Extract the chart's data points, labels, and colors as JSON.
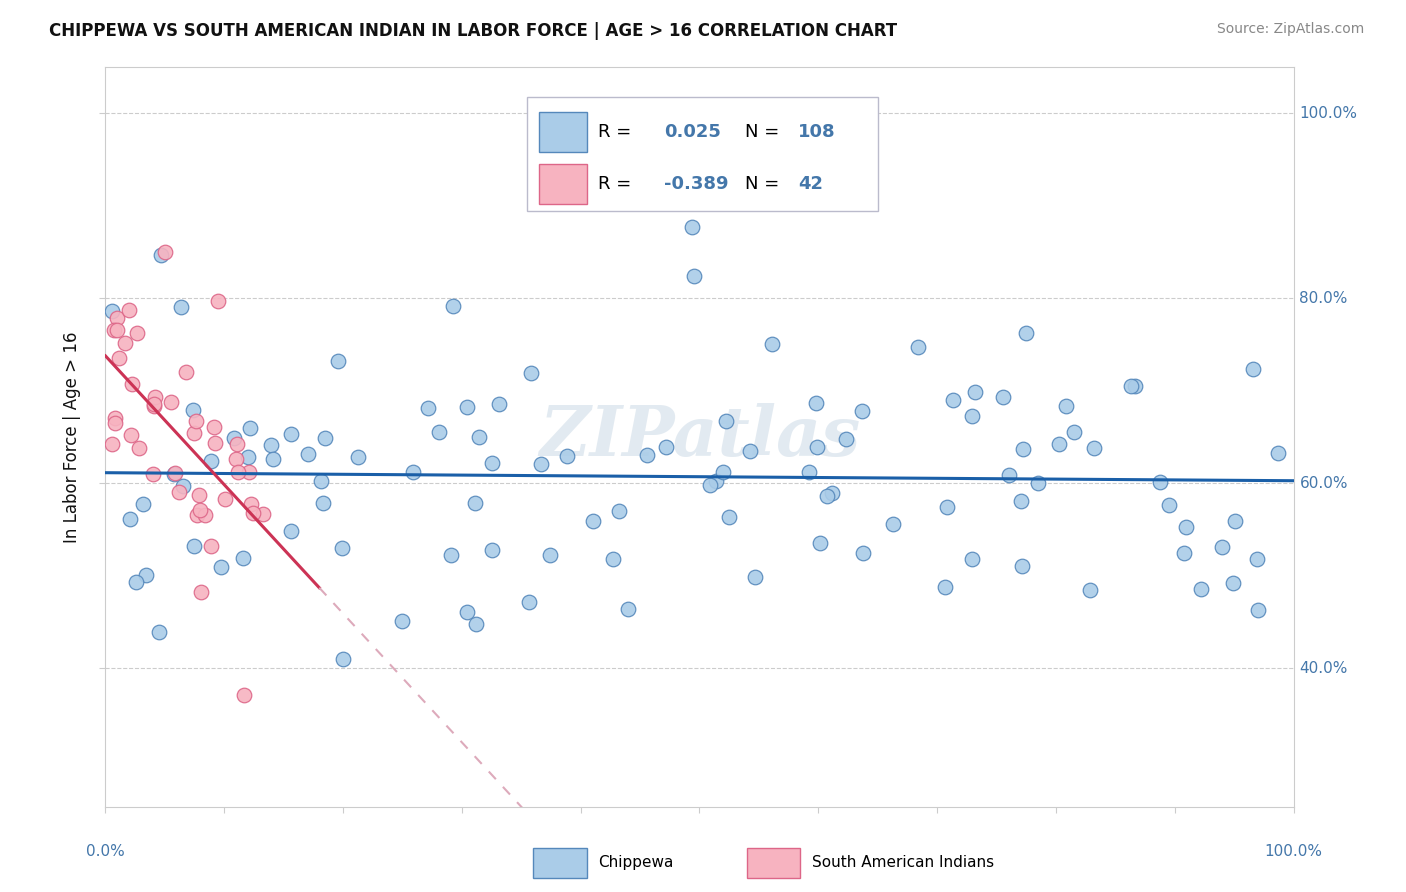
{
  "title": "CHIPPEWA VS SOUTH AMERICAN INDIAN IN LABOR FORCE | AGE > 16 CORRELATION CHART",
  "source": "Source: ZipAtlas.com",
  "ylabel": "In Labor Force | Age > 16",
  "legend_label1": "Chippewa",
  "legend_label2": "South American Indians",
  "r1": "0.025",
  "n1": "108",
  "r2": "-0.389",
  "n2": "42",
  "watermark": "ZIPatlas",
  "blue_scatter_face": "#aacce8",
  "blue_scatter_edge": "#5588bb",
  "pink_scatter_face": "#f7b3c0",
  "pink_scatter_edge": "#dd6688",
  "blue_line_color": "#1a5fa8",
  "pink_line_color": "#cc3355",
  "pink_dash_color": "#ddaabb",
  "grid_color": "#cccccc",
  "tick_label_color": "#4477aa",
  "title_color": "#111111",
  "source_color": "#888888",
  "ylabel_color": "#111111",
  "legend_box_color": "#bbbbcc",
  "xlim": [
    0.0,
    1.0
  ],
  "ylim": [
    0.25,
    1.05
  ],
  "yticks": [
    0.4,
    0.6,
    0.8,
    1.0
  ],
  "ytick_labels": [
    "40.0%",
    "60.0%",
    "80.0%",
    "100.0%"
  ],
  "xtick_labels_show": [
    "0.0%",
    "100.0%"
  ]
}
